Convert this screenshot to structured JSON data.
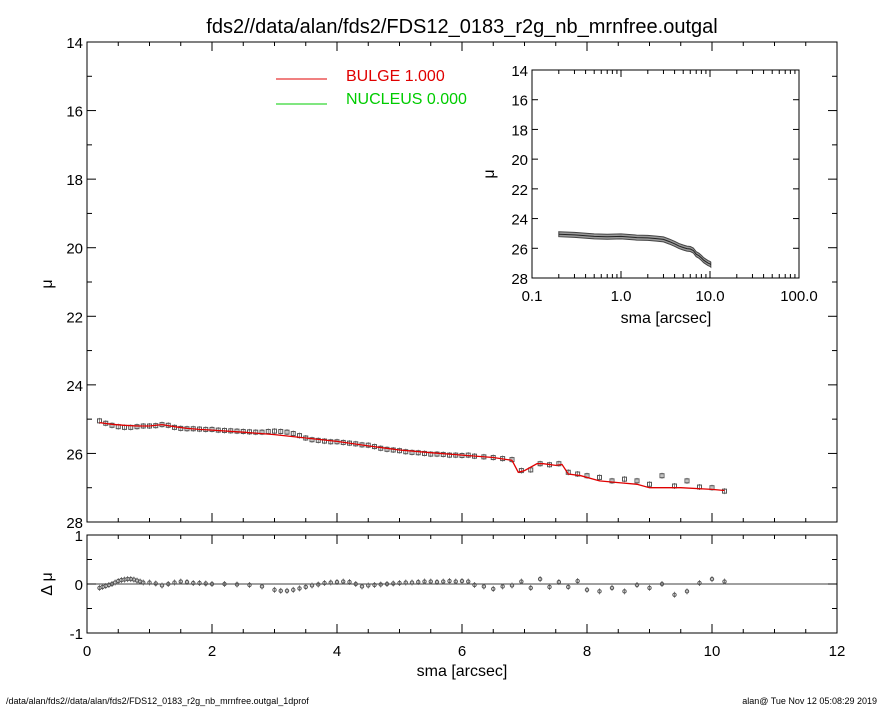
{
  "title": "fds2//data/alan/fds2/FDS12_0183_r2g_nb_mrnfree.outgal",
  "footer_left": "/data/alan/fds2//data/alan/fds2/FDS12_0183_r2g_nb_mrnfree.outgal_1dprof",
  "footer_right": "alan@  Tue Nov 12 05:08:29 2019",
  "colors": {
    "bulge": "#e00000",
    "nucleus": "#00cc00",
    "data": "#555555",
    "axes": "#000000"
  },
  "legend": [
    {
      "label": "BULGE  1.000",
      "color": "#e00000"
    },
    {
      "label": "NUCLEUS  0.000",
      "color": "#00cc00"
    }
  ],
  "chart_data": [
    {
      "type": "scatter",
      "panel": "main",
      "xlabel": "",
      "ylabel": "μ",
      "xlim": [
        0,
        12
      ],
      "ylim": [
        28,
        14
      ],
      "y_inverted": true,
      "xticks": [
        "0",
        "2",
        "4",
        "6",
        "8",
        "10",
        "12"
      ],
      "yticks": [
        "14",
        "16",
        "18",
        "20",
        "22",
        "24",
        "26",
        "28"
      ],
      "series": [
        {
          "name": "data",
          "kind": "markers",
          "x": [
            0.2,
            0.3,
            0.4,
            0.5,
            0.6,
            0.7,
            0.8,
            0.9,
            1.0,
            1.1,
            1.2,
            1.3,
            1.4,
            1.5,
            1.6,
            1.7,
            1.8,
            1.9,
            2.0,
            2.1,
            2.2,
            2.3,
            2.4,
            2.5,
            2.6,
            2.7,
            2.8,
            2.9,
            3.0,
            3.1,
            3.2,
            3.3,
            3.4,
            3.5,
            3.6,
            3.7,
            3.8,
            3.9,
            4.0,
            4.1,
            4.2,
            4.3,
            4.4,
            4.5,
            4.6,
            4.7,
            4.8,
            4.9,
            5.0,
            5.1,
            5.2,
            5.3,
            5.4,
            5.5,
            5.6,
            5.7,
            5.8,
            5.9,
            6.0,
            6.1,
            6.2,
            6.35,
            6.5,
            6.65,
            6.8,
            6.95,
            7.1,
            7.25,
            7.4,
            7.55,
            7.7,
            7.85,
            8.0,
            8.2,
            8.4,
            8.6,
            8.8,
            9.0,
            9.2,
            9.4,
            9.6,
            9.8,
            10.0,
            10.2
          ],
          "y": [
            25.05,
            25.12,
            25.18,
            25.22,
            25.24,
            25.24,
            25.22,
            25.2,
            25.2,
            25.19,
            25.16,
            25.18,
            25.24,
            25.27,
            25.28,
            25.28,
            25.29,
            25.3,
            25.3,
            25.32,
            25.33,
            25.34,
            25.35,
            25.36,
            25.37,
            25.38,
            25.38,
            25.36,
            25.35,
            25.36,
            25.38,
            25.42,
            25.48,
            25.55,
            25.6,
            25.62,
            25.64,
            25.66,
            25.66,
            25.68,
            25.7,
            25.72,
            25.75,
            25.76,
            25.8,
            25.85,
            25.88,
            25.9,
            25.92,
            25.95,
            25.97,
            25.98,
            26.0,
            26.02,
            26.02,
            26.03,
            26.05,
            26.05,
            26.06,
            26.05,
            26.08,
            26.1,
            26.12,
            26.15,
            26.18,
            26.5,
            26.48,
            26.3,
            26.33,
            26.3,
            26.55,
            26.6,
            26.65,
            26.7,
            26.8,
            26.75,
            26.8,
            26.9,
            26.65,
            26.95,
            26.8,
            26.98,
            27.0,
            27.1
          ],
          "color": "#555555"
        },
        {
          "name": "BULGE  1.000",
          "kind": "line",
          "x": [
            0.2,
            0.4,
            0.6,
            0.8,
            1.0,
            1.2,
            1.4,
            1.6,
            1.8,
            2.0,
            2.5,
            3.0,
            3.5,
            4.0,
            4.5,
            5.0,
            5.5,
            6.0,
            6.5,
            6.8,
            6.9,
            7.0,
            7.2,
            7.3,
            7.5,
            7.6,
            7.7,
            7.9,
            8.2,
            8.5,
            8.8,
            9.0,
            9.5,
            10.0,
            10.2
          ],
          "y": [
            25.1,
            25.15,
            25.18,
            25.2,
            25.2,
            25.16,
            25.22,
            25.27,
            25.3,
            25.32,
            25.38,
            25.45,
            25.55,
            25.65,
            25.78,
            25.9,
            25.98,
            26.05,
            26.12,
            26.2,
            26.55,
            26.5,
            26.3,
            26.3,
            26.35,
            26.32,
            26.6,
            26.65,
            26.8,
            26.85,
            26.9,
            27.0,
            27.0,
            27.05,
            27.08
          ],
          "color": "#e00000"
        }
      ]
    },
    {
      "type": "scatter",
      "panel": "residual",
      "xlabel": "sma [arcsec]",
      "ylabel": "Δ μ",
      "xlim": [
        0,
        12
      ],
      "ylim": [
        -1,
        1
      ],
      "xticks": [
        "0",
        "2",
        "4",
        "6",
        "8",
        "10",
        "12"
      ],
      "yticks": [
        "-1",
        "0",
        "1"
      ],
      "series": [
        {
          "name": "residual",
          "kind": "markers",
          "x": [
            0.2,
            0.25,
            0.3,
            0.35,
            0.4,
            0.45,
            0.5,
            0.55,
            0.6,
            0.65,
            0.7,
            0.75,
            0.8,
            0.85,
            0.9,
            1.0,
            1.1,
            1.2,
            1.3,
            1.4,
            1.5,
            1.6,
            1.7,
            1.8,
            1.9,
            2.0,
            2.2,
            2.4,
            2.6,
            2.8,
            3.0,
            3.1,
            3.2,
            3.3,
            3.4,
            3.5,
            3.6,
            3.7,
            3.8,
            3.9,
            4.0,
            4.1,
            4.2,
            4.3,
            4.4,
            4.5,
            4.6,
            4.7,
            4.8,
            4.9,
            5.0,
            5.1,
            5.2,
            5.3,
            5.4,
            5.5,
            5.6,
            5.7,
            5.8,
            5.9,
            6.0,
            6.1,
            6.2,
            6.35,
            6.5,
            6.65,
            6.8,
            6.95,
            7.1,
            7.25,
            7.4,
            7.55,
            7.7,
            7.85,
            8.0,
            8.2,
            8.4,
            8.6,
            8.8,
            9.0,
            9.2,
            9.4,
            9.6,
            9.8,
            10.0,
            10.2
          ],
          "y": [
            -0.08,
            -0.06,
            -0.04,
            -0.02,
            0.0,
            0.03,
            0.06,
            0.08,
            0.09,
            0.1,
            0.1,
            0.09,
            0.07,
            0.05,
            0.03,
            0.03,
            0.01,
            -0.03,
            0.0,
            0.03,
            0.05,
            0.04,
            0.02,
            0.02,
            0.01,
            0.0,
            0.0,
            -0.01,
            -0.02,
            -0.05,
            -0.12,
            -0.14,
            -0.14,
            -0.12,
            -0.09,
            -0.06,
            -0.03,
            -0.01,
            0.02,
            0.03,
            0.04,
            0.05,
            0.04,
            0.0,
            -0.05,
            -0.03,
            -0.02,
            -0.01,
            0.0,
            0.01,
            0.02,
            0.03,
            0.03,
            0.04,
            0.05,
            0.05,
            0.04,
            0.05,
            0.06,
            0.05,
            0.06,
            0.05,
            -0.02,
            -0.05,
            -0.1,
            -0.05,
            -0.03,
            0.05,
            -0.08,
            0.1,
            -0.06,
            0.04,
            -0.06,
            0.06,
            -0.12,
            -0.15,
            -0.08,
            -0.15,
            -0.02,
            -0.08,
            0.0,
            -0.22,
            -0.15,
            0.02,
            0.1,
            0.05
          ],
          "color": "#555555"
        },
        {
          "name": "zero-line",
          "kind": "line",
          "x": [
            0,
            12
          ],
          "y": [
            0,
            0
          ],
          "color": "#000000"
        }
      ]
    },
    {
      "type": "line",
      "panel": "inset",
      "xlabel": "sma [arcsec]",
      "ylabel": "μ",
      "xscale": "log",
      "xlim": [
        0.1,
        100
      ],
      "ylim": [
        28,
        14
      ],
      "y_inverted": true,
      "xticks": [
        "0.1",
        "1.0",
        "10.0",
        "100.0"
      ],
      "yticks": [
        "14",
        "16",
        "18",
        "20",
        "22",
        "24",
        "26",
        "28"
      ],
      "series": [
        {
          "name": "profile",
          "kind": "band",
          "x": [
            0.2,
            0.3,
            0.5,
            0.7,
            1.0,
            1.5,
            2.0,
            2.5,
            3.0,
            3.5,
            4.0,
            4.5,
            5.0,
            5.5,
            6.0,
            6.5,
            7.0,
            7.5,
            8.0,
            8.5,
            9.0,
            9.5,
            10.0,
            10.2
          ],
          "y": [
            25.05,
            25.1,
            25.2,
            25.22,
            25.2,
            25.28,
            25.3,
            25.35,
            25.4,
            25.55,
            25.7,
            25.85,
            25.95,
            26.02,
            26.05,
            26.15,
            26.4,
            26.5,
            26.65,
            26.8,
            26.9,
            27.0,
            27.05,
            27.1
          ],
          "color": "#555555"
        }
      ]
    }
  ]
}
